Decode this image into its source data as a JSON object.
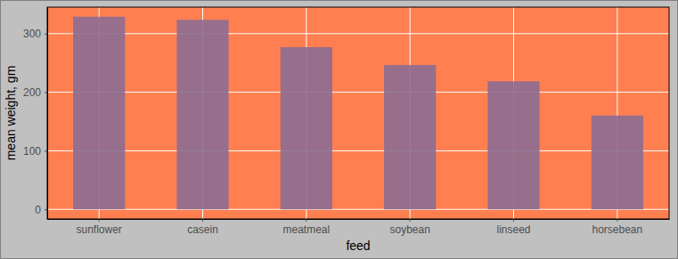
{
  "chart_data": {
    "type": "bar",
    "x_label": "feed",
    "y_label": "mean weight, gm",
    "categories": [
      "sunflower",
      "casein",
      "meatmeal",
      "soybean",
      "linseed",
      "horsebean"
    ],
    "values": [
      328.9,
      323.6,
      276.9,
      246.4,
      218.7,
      160.2
    ],
    "color": "#8c6d91",
    "ylim": [
      -16.4,
      345.3
    ],
    "yticks": [
      0,
      100,
      200,
      300
    ],
    "grid": true
  }
}
